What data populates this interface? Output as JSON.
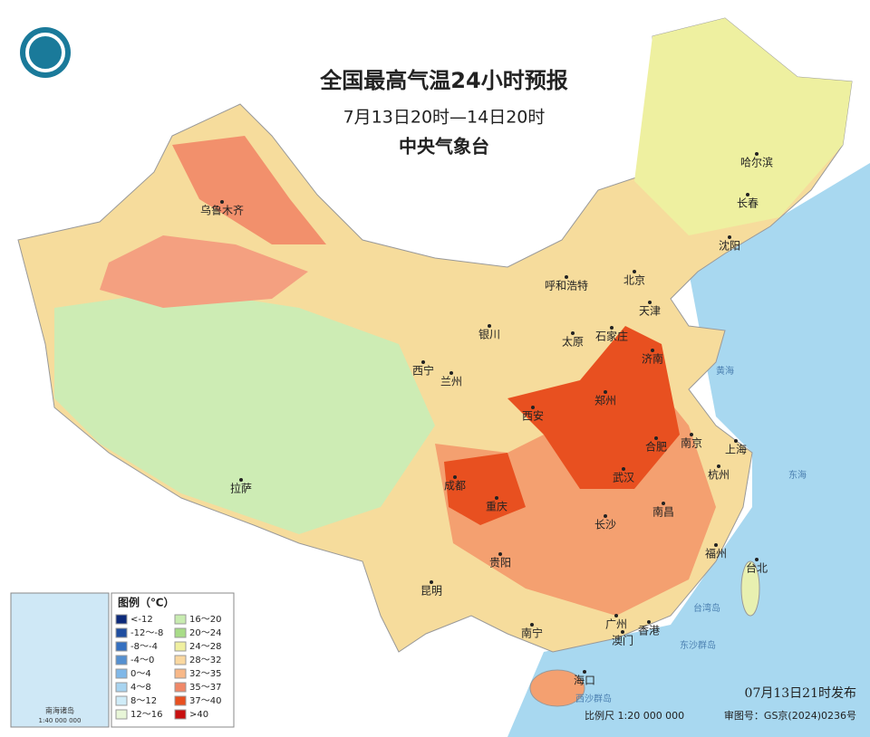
{
  "title": "全国最高气温24小时预报",
  "subtitle": "7月13日20时—14日20时",
  "agency": "中央气象台",
  "cities": [
    "乌鲁木齐",
    "哈尔滨",
    "长春",
    "沈阳",
    "呼和浩特",
    "北京",
    "天津",
    "银川",
    "太原",
    "石家庄",
    "济南",
    "西宁",
    "兰州",
    "西安",
    "郑州",
    "合肥",
    "南京",
    "上海",
    "杭州",
    "成都",
    "武汉",
    "拉萨",
    "重庆",
    "南昌",
    "长沙",
    "福州",
    "台北",
    "贵阳",
    "昆明",
    "广州",
    "南宁",
    "香港",
    "澳门",
    "海口"
  ],
  "seas": [
    "黄海",
    "东海",
    "台湾岛",
    "东沙群岛",
    "西沙群岛"
  ],
  "legend": {
    "title": "图例（℃）",
    "items": [
      {
        "label": "<-12",
        "color": "#0d2a7a"
      },
      {
        "label": "-12～-8",
        "color": "#1f4ea0"
      },
      {
        "label": "-8～-4",
        "color": "#3570c0"
      },
      {
        "label": "-4～0",
        "color": "#5590d0"
      },
      {
        "label": "0～4",
        "color": "#80b8e8"
      },
      {
        "label": "4～8",
        "color": "#a8d4f0"
      },
      {
        "label": "8～12",
        "color": "#d0ecf8"
      },
      {
        "label": "12～16",
        "color": "#e8f6d8"
      },
      {
        "label": "16～20",
        "color": "#c8ecb0"
      },
      {
        "label": "20～24",
        "color": "#a8dc88"
      },
      {
        "label": "24～28",
        "color": "#f0f0a0"
      },
      {
        "label": "28～32",
        "color": "#fad8a0"
      },
      {
        "label": "32～35",
        "color": "#f8b888"
      },
      {
        "label": "35～37",
        "color": "#f08868"
      },
      {
        "label": "37～40",
        "color": "#e85020"
      },
      {
        "label": ">40",
        "color": "#c81010"
      }
    ]
  },
  "inset": {
    "label": "南海诸岛",
    "scale": "1:40 000 000"
  },
  "footer": {
    "issued": "07月13日21时发布",
    "scale": "比例尺 1:20 000 000",
    "approval": "审图号：GS京(2024)0236号"
  }
}
